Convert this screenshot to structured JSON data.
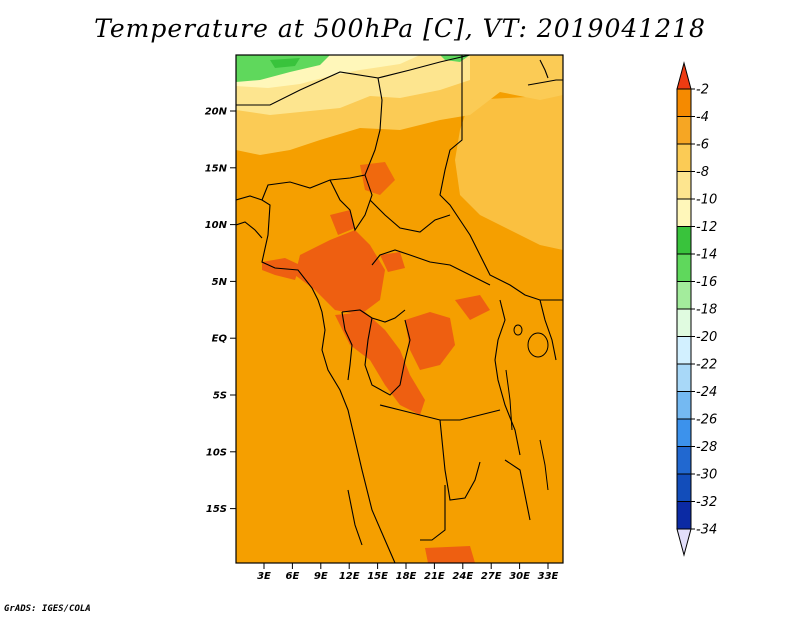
{
  "title": "Temperature at 500hPa [C], VT: 2019041218",
  "credit": "GrADS: IGES/COLA",
  "lat_labels": [
    "20N",
    "15N",
    "10N",
    "5N",
    "EQ",
    "5S",
    "10S",
    "15S"
  ],
  "lon_labels": [
    "3E",
    "6E",
    "9E",
    "12E",
    "15E",
    "18E",
    "21E",
    "24E",
    "27E",
    "30E",
    "33E"
  ],
  "colorbar": {
    "labels": [
      "-2",
      "-4",
      "-6",
      "-8",
      "-10",
      "-12",
      "-14",
      "-16",
      "-18",
      "-20",
      "-22",
      "-24",
      "-26",
      "-28",
      "-30",
      "-32",
      "-34"
    ],
    "colors": [
      "#ee4f14",
      "#f58a00",
      "#f6a623",
      "#fbcb55",
      "#fde58f",
      "#fff7ba",
      "#39c33c",
      "#5fd85c",
      "#a3ec9c",
      "#e0fbe0",
      "#d2f0ff",
      "#a8d8f8",
      "#74b9f2",
      "#3c92ec",
      "#2168d0",
      "#124dba",
      "#0b2aa4",
      "#091472"
    ],
    "top_triangle_color": "#ee3b12",
    "bottom_triangle_color": "#e2defa"
  },
  "field_colors": {
    "dominant": "#f59f00",
    "warm": "#ee5f11",
    "cool_light": "#fbcb55",
    "pale": "#fff7ba",
    "green": "#39c33c",
    "green_light": "#5fd85c"
  }
}
